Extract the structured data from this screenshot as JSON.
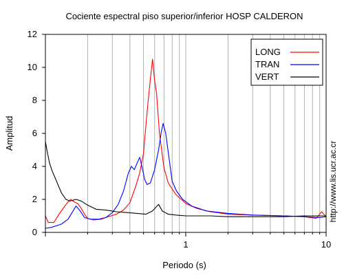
{
  "chart_data": {
    "type": "line",
    "title": "Cociente espectral piso superior/inferior  HOSP CALDERON",
    "xlabel": "Periodo (s)",
    "ylabel": "Amplitud",
    "xscale": "log",
    "xlim": [
      0.1,
      10
    ],
    "ylim": [
      0,
      12
    ],
    "xticks": [
      1,
      10
    ],
    "xtick_labels": [
      "1",
      "10"
    ],
    "yticks": [
      0,
      2,
      4,
      6,
      8,
      10,
      12
    ],
    "ytick_labels": [
      "0",
      "2",
      "4",
      "6",
      "8",
      "10",
      "12"
    ],
    "grid": "x-minor",
    "legend_position": "top-right",
    "side_note": "http://www.lis.ucr.ac.cr",
    "series": [
      {
        "name": "LONG",
        "color": "#ff0000",
        "points": [
          [
            0.1,
            1.0
          ],
          [
            0.105,
            0.6
          ],
          [
            0.115,
            0.6
          ],
          [
            0.125,
            1.1
          ],
          [
            0.135,
            1.5
          ],
          [
            0.145,
            1.85
          ],
          [
            0.152,
            2.0
          ],
          [
            0.16,
            1.85
          ],
          [
            0.17,
            1.75
          ],
          [
            0.18,
            1.45
          ],
          [
            0.19,
            1.1
          ],
          [
            0.2,
            0.85
          ],
          [
            0.22,
            0.75
          ],
          [
            0.25,
            0.8
          ],
          [
            0.28,
            0.95
          ],
          [
            0.32,
            1.1
          ],
          [
            0.36,
            1.35
          ],
          [
            0.4,
            1.8
          ],
          [
            0.44,
            2.8
          ],
          [
            0.47,
            3.6
          ],
          [
            0.5,
            4.8
          ],
          [
            0.52,
            6.5
          ],
          [
            0.54,
            8.0
          ],
          [
            0.56,
            9.3
          ],
          [
            0.58,
            10.5
          ],
          [
            0.6,
            9.2
          ],
          [
            0.62,
            8.4
          ],
          [
            0.65,
            6.0
          ],
          [
            0.7,
            3.9
          ],
          [
            0.75,
            3.0
          ],
          [
            0.85,
            2.3
          ],
          [
            1.0,
            1.75
          ],
          [
            1.2,
            1.45
          ],
          [
            1.5,
            1.25
          ],
          [
            2.0,
            1.1
          ],
          [
            3.0,
            1.05
          ],
          [
            5.0,
            1.0
          ],
          [
            7.0,
            0.95
          ],
          [
            8.5,
            0.85
          ],
          [
            9.3,
            1.25
          ],
          [
            10.0,
            0.95
          ]
        ]
      },
      {
        "name": "TRAN",
        "color": "#0000ff",
        "points": [
          [
            0.1,
            0.25
          ],
          [
            0.11,
            0.3
          ],
          [
            0.13,
            0.5
          ],
          [
            0.145,
            0.8
          ],
          [
            0.155,
            1.2
          ],
          [
            0.165,
            1.6
          ],
          [
            0.175,
            1.35
          ],
          [
            0.19,
            0.9
          ],
          [
            0.21,
            0.8
          ],
          [
            0.24,
            0.8
          ],
          [
            0.27,
            0.9
          ],
          [
            0.3,
            1.2
          ],
          [
            0.33,
            1.7
          ],
          [
            0.36,
            2.5
          ],
          [
            0.39,
            3.6
          ],
          [
            0.41,
            4.0
          ],
          [
            0.43,
            3.8
          ],
          [
            0.45,
            4.2
          ],
          [
            0.47,
            4.55
          ],
          [
            0.49,
            3.9
          ],
          [
            0.51,
            3.2
          ],
          [
            0.53,
            2.9
          ],
          [
            0.56,
            3.0
          ],
          [
            0.6,
            3.8
          ],
          [
            0.64,
            5.0
          ],
          [
            0.67,
            6.1
          ],
          [
            0.69,
            6.6
          ],
          [
            0.72,
            6.0
          ],
          [
            0.76,
            4.5
          ],
          [
            0.8,
            3.1
          ],
          [
            0.86,
            2.5
          ],
          [
            0.95,
            2.0
          ],
          [
            1.1,
            1.6
          ],
          [
            1.4,
            1.3
          ],
          [
            2.0,
            1.15
          ],
          [
            3.0,
            1.05
          ],
          [
            5.0,
            1.0
          ],
          [
            7.0,
            0.95
          ],
          [
            9.0,
            0.9
          ],
          [
            10.0,
            0.95
          ]
        ]
      },
      {
        "name": "VERT",
        "color": "#000000",
        "points": [
          [
            0.1,
            5.5
          ],
          [
            0.103,
            4.9
          ],
          [
            0.107,
            4.2
          ],
          [
            0.112,
            3.7
          ],
          [
            0.12,
            3.1
          ],
          [
            0.13,
            2.4
          ],
          [
            0.14,
            2.0
          ],
          [
            0.15,
            1.9
          ],
          [
            0.165,
            2.0
          ],
          [
            0.18,
            1.9
          ],
          [
            0.2,
            1.65
          ],
          [
            0.23,
            1.4
          ],
          [
            0.27,
            1.35
          ],
          [
            0.32,
            1.25
          ],
          [
            0.38,
            1.2
          ],
          [
            0.45,
            1.15
          ],
          [
            0.52,
            1.1
          ],
          [
            0.58,
            1.3
          ],
          [
            0.64,
            1.7
          ],
          [
            0.68,
            1.3
          ],
          [
            0.75,
            1.1
          ],
          [
            0.85,
            1.05
          ],
          [
            1.0,
            1.0
          ],
          [
            1.5,
            1.0
          ],
          [
            2.0,
            0.95
          ],
          [
            3.0,
            0.95
          ],
          [
            5.0,
            0.95
          ],
          [
            7.0,
            1.0
          ],
          [
            10.0,
            1.0
          ]
        ]
      }
    ]
  }
}
